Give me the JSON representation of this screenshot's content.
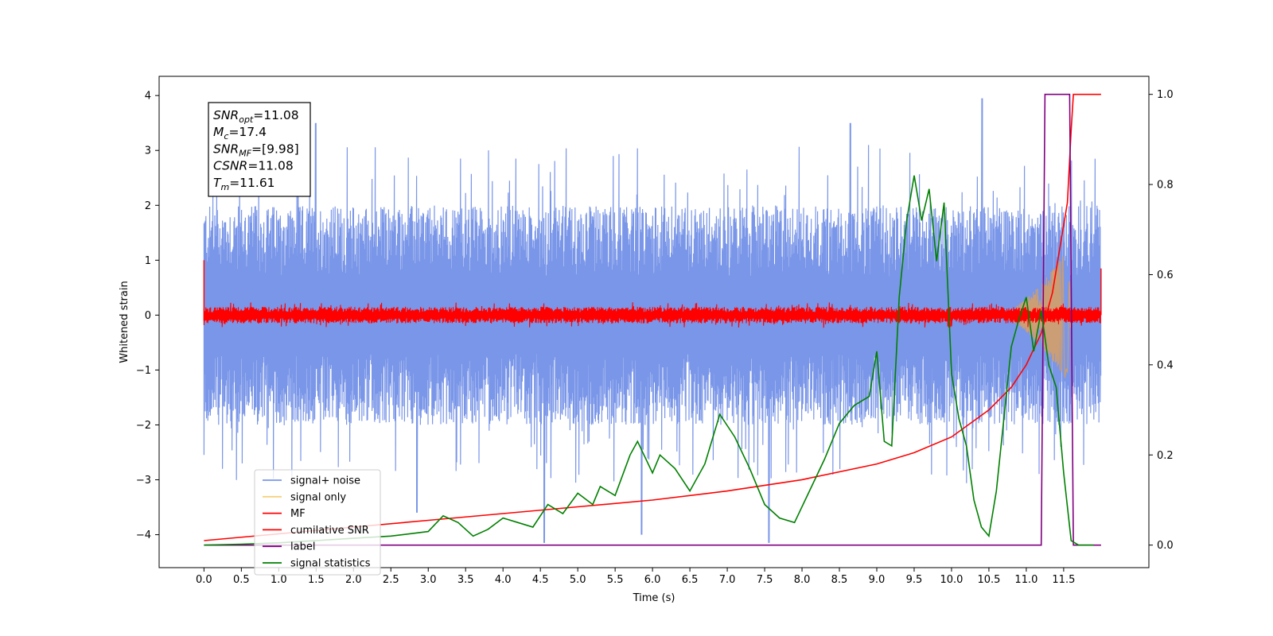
{
  "chart_data": {
    "type": "line",
    "xlabel": "Time (s)",
    "ylabel": "Whitened strain",
    "xlim": [
      -0.6,
      12.64
    ],
    "ylim": [
      -4.6,
      4.35
    ],
    "y2lim": [
      -0.05,
      1.04
    ],
    "xticks": [
      0.0,
      0.5,
      1.0,
      1.5,
      2.0,
      2.5,
      3.0,
      3.5,
      4.0,
      4.5,
      5.0,
      5.5,
      6.0,
      6.5,
      7.0,
      7.5,
      8.0,
      8.5,
      9.0,
      9.5,
      10.0,
      10.5,
      11.0,
      11.5
    ],
    "xtick_labels": [
      "0.0",
      "0.5",
      "1.0",
      "1.5",
      "2.0",
      "2.5",
      "3.0",
      "3.5",
      "4.0",
      "4.5",
      "5.0",
      "5.5",
      "6.0",
      "6.5",
      "7.0",
      "7.5",
      "8.0",
      "8.5",
      "9.0",
      "9.5",
      "10.0",
      "10.5",
      "11.0",
      "11.5"
    ],
    "yticks": [
      -4,
      -3,
      -2,
      -1,
      0,
      1,
      2,
      3,
      4
    ],
    "ytick_labels": [
      "−4",
      "−3",
      "−2",
      "−1",
      "0",
      "1",
      "2",
      "3",
      "4"
    ],
    "y2ticks": [
      0.0,
      0.2,
      0.4,
      0.6,
      0.8,
      1.0
    ],
    "y2tick_labels": [
      "0.0",
      "0.2",
      "0.4",
      "0.6",
      "0.8",
      "1.0"
    ],
    "grid": false,
    "legend": {
      "placement": "lower-left",
      "entries": [
        {
          "name": "signal+ noise",
          "color": "#7a96e8"
        },
        {
          "name": "signal only",
          "color": "#f5d17e"
        },
        {
          "name": "MF",
          "color": "#ff0000"
        },
        {
          "name": "cumilative SNR",
          "color": "#ff0000"
        },
        {
          "name": "label",
          "color": "#800080"
        },
        {
          "name": "signal statistics",
          "color": "#008000"
        }
      ]
    },
    "annotation": {
      "lines": [
        {
          "main": "SNR",
          "sub": "opt",
          "rest": "=11.08"
        },
        {
          "main": "M",
          "sub": "c",
          "rest": "=17.4"
        },
        {
          "main": "SNR",
          "sub": "MF",
          "rest": "=[9.98]"
        },
        {
          "main": "CSNR",
          "sub": "",
          "rest": "=11.08"
        },
        {
          "main": "T",
          "sub": "m",
          "rest": "=11.61"
        }
      ]
    },
    "series": [
      {
        "name": "signal+ noise",
        "axis": "left",
        "color": "#7a96e8",
        "kind": "noise",
        "x_range": [
          0.0,
          12.0
        ],
        "envelope": [
          -2.0,
          2.0
        ],
        "spikes": [
          [
            1.5,
            3.5
          ],
          [
            4.55,
            -4.15
          ],
          [
            5.85,
            -4.0
          ],
          [
            7.55,
            -4.15
          ],
          [
            10.4,
            3.95
          ],
          [
            2.85,
            -3.6
          ],
          [
            8.65,
            3.5
          ]
        ]
      },
      {
        "name": "signal only",
        "axis": "left",
        "color": "#d9a060",
        "kind": "chirp",
        "x_range": [
          10.6,
          11.6
        ],
        "peak_amp": 1.3
      },
      {
        "name": "MF",
        "axis": "left",
        "color": "#ff0000",
        "kind": "noise",
        "x_range": [
          0.0,
          12.0
        ],
        "envelope": [
          -0.15,
          0.15
        ]
      },
      {
        "name": "cumilative SNR",
        "axis": "right",
        "color": "#ff0000",
        "x": [
          0.0,
          1.0,
          2.0,
          3.0,
          4.0,
          5.0,
          6.0,
          7.0,
          8.0,
          9.0,
          9.5,
          10.0,
          10.5,
          10.8,
          11.0,
          11.2,
          11.35,
          11.45,
          11.55,
          11.6,
          11.63,
          11.7,
          12.0
        ],
        "y": [
          0.01,
          0.025,
          0.04,
          0.055,
          0.07,
          0.085,
          0.1,
          0.12,
          0.145,
          0.18,
          0.205,
          0.24,
          0.3,
          0.35,
          0.4,
          0.47,
          0.56,
          0.66,
          0.76,
          0.92,
          1.0,
          1.0,
          1.0
        ]
      },
      {
        "name": "label",
        "axis": "right",
        "color": "#800080",
        "x": [
          0.0,
          11.2,
          11.25,
          11.58,
          11.63,
          12.0
        ],
        "y": [
          0.0,
          0.0,
          1.0,
          1.0,
          0.0,
          0.0
        ]
      },
      {
        "name": "signal statistics",
        "axis": "right",
        "color": "#008000",
        "x": [
          0.0,
          0.5,
          1.0,
          1.5,
          2.0,
          2.5,
          3.0,
          3.2,
          3.4,
          3.6,
          3.8,
          4.0,
          4.2,
          4.4,
          4.6,
          4.8,
          5.0,
          5.2,
          5.3,
          5.5,
          5.7,
          5.8,
          6.0,
          6.1,
          6.3,
          6.5,
          6.7,
          6.9,
          7.1,
          7.3,
          7.5,
          7.7,
          7.9,
          8.1,
          8.3,
          8.5,
          8.7,
          8.9,
          9.0,
          9.1,
          9.2,
          9.3,
          9.4,
          9.5,
          9.6,
          9.7,
          9.8,
          9.9,
          10.0,
          10.1,
          10.2,
          10.3,
          10.4,
          10.5,
          10.6,
          10.7,
          10.8,
          10.9,
          11.0,
          11.1,
          11.2,
          11.3,
          11.4,
          11.5,
          11.6,
          11.7,
          11.9
        ],
        "y": [
          0.0,
          0.002,
          0.005,
          0.01,
          0.015,
          0.02,
          0.03,
          0.065,
          0.05,
          0.02,
          0.035,
          0.06,
          0.05,
          0.04,
          0.09,
          0.07,
          0.115,
          0.09,
          0.13,
          0.11,
          0.2,
          0.23,
          0.16,
          0.2,
          0.17,
          0.12,
          0.18,
          0.29,
          0.24,
          0.17,
          0.09,
          0.06,
          0.05,
          0.12,
          0.19,
          0.27,
          0.31,
          0.33,
          0.43,
          0.23,
          0.22,
          0.55,
          0.72,
          0.82,
          0.72,
          0.79,
          0.63,
          0.76,
          0.38,
          0.28,
          0.22,
          0.1,
          0.04,
          0.02,
          0.12,
          0.28,
          0.44,
          0.5,
          0.55,
          0.43,
          0.52,
          0.4,
          0.35,
          0.16,
          0.01,
          0.0,
          0.0
        ]
      }
    ]
  }
}
